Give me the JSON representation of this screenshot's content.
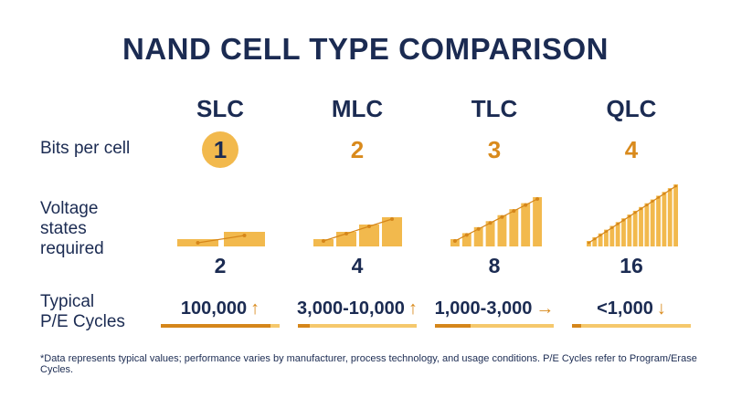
{
  "title": "NAND CELL TYPE COMPARISON",
  "row_labels": {
    "bits": "Bits per cell",
    "voltage": "Voltage\nstates\nrequired",
    "pe": "Typical\nP/E Cycles"
  },
  "columns": [
    {
      "name": "SLC",
      "bits": "1",
      "states": "2",
      "pe": "100,000",
      "pe_arrow": "↑",
      "endurance": 0.92
    },
    {
      "name": "MLC",
      "bits": "2",
      "states": "4",
      "pe": "3,000-10,000",
      "pe_arrow": "↑",
      "endurance": 0.1
    },
    {
      "name": "TLC",
      "bits": "3",
      "states": "8",
      "pe": "1,000-3,000",
      "pe_arrow": "→",
      "endurance": 0.3
    },
    {
      "name": "QLC",
      "bits": "4",
      "states": "16",
      "pe": "<1,000",
      "pe_arrow": "↓",
      "endurance": 0.08
    }
  ],
  "colors": {
    "navy": "#1b2b52",
    "orange_dark": "#d5861a",
    "orange_light": "#f5c86c",
    "bar_fill": "#f2b94d"
  },
  "footnote": "*Data represents typical values; performance varies by manufacturer, process technology, and usage conditions. P/E Cycles refer to Program/Erase Cycles."
}
